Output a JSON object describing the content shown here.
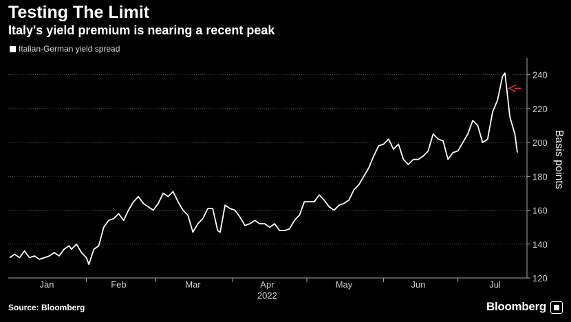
{
  "header": {
    "title": "Testing The Limit",
    "subtitle": "Italy's yield premium is nearing a recent peak"
  },
  "footer": {
    "source": "Source: Bloomberg",
    "brand": "Bloomberg"
  },
  "colors": {
    "background": "#000000",
    "line": "#ffffff",
    "arrow": "#e0314a",
    "grid": "#555555"
  },
  "chart_data": {
    "type": "line",
    "title": "Testing The Limit",
    "subtitle": "Italy's yield premium is nearing a recent peak",
    "xlabel": "2022",
    "ylabel": "Basis points",
    "ylim": [
      120,
      250
    ],
    "yticks": [
      120,
      140,
      160,
      180,
      200,
      220,
      240
    ],
    "y_axis_side": "right",
    "grid": true,
    "legend_placement": "top-left",
    "x_range": [
      "2022-01-01",
      "2022-07-25"
    ],
    "x_month_ticks": [
      {
        "label": "Jan",
        "mid": "2022-01-16"
      },
      {
        "label": "Feb",
        "mid": "2022-02-14"
      },
      {
        "label": "Mar",
        "mid": "2022-03-16"
      },
      {
        "label": "Apr",
        "mid": "2022-04-15"
      },
      {
        "label": "May",
        "mid": "2022-05-16"
      },
      {
        "label": "Jun",
        "mid": "2022-06-15"
      },
      {
        "label": "Jul",
        "mid": "2022-07-16"
      }
    ],
    "x_boundaries": [
      "2022-02-01",
      "2022-03-01",
      "2022-04-01",
      "2022-05-01",
      "2022-06-01",
      "2022-07-01"
    ],
    "series": [
      {
        "name": "Italian-German yield spread",
        "points": [
          [
            "2022-01-01",
            132
          ],
          [
            "2022-01-03",
            134
          ],
          [
            "2022-01-05",
            132
          ],
          [
            "2022-01-07",
            136
          ],
          [
            "2022-01-09",
            132
          ],
          [
            "2022-01-11",
            133
          ],
          [
            "2022-01-13",
            131
          ],
          [
            "2022-01-15",
            132
          ],
          [
            "2022-01-17",
            133
          ],
          [
            "2022-01-19",
            135
          ],
          [
            "2022-01-21",
            133
          ],
          [
            "2022-01-23",
            137
          ],
          [
            "2022-01-25",
            139
          ],
          [
            "2022-01-26",
            137
          ],
          [
            "2022-01-28",
            140
          ],
          [
            "2022-01-30",
            135
          ],
          [
            "2022-02-01",
            132
          ],
          [
            "2022-02-02",
            128
          ],
          [
            "2022-02-04",
            137
          ],
          [
            "2022-02-06",
            139
          ],
          [
            "2022-02-08",
            150
          ],
          [
            "2022-02-10",
            154
          ],
          [
            "2022-02-12",
            155
          ],
          [
            "2022-02-14",
            158
          ],
          [
            "2022-02-16",
            154
          ],
          [
            "2022-02-18",
            160
          ],
          [
            "2022-02-20",
            165
          ],
          [
            "2022-02-22",
            168
          ],
          [
            "2022-02-24",
            164
          ],
          [
            "2022-02-26",
            162
          ],
          [
            "2022-02-28",
            160
          ],
          [
            "2022-03-02",
            164
          ],
          [
            "2022-03-04",
            170
          ],
          [
            "2022-03-06",
            168
          ],
          [
            "2022-03-08",
            171
          ],
          [
            "2022-03-10",
            165
          ],
          [
            "2022-03-12",
            160
          ],
          [
            "2022-03-14",
            157
          ],
          [
            "2022-03-16",
            147
          ],
          [
            "2022-03-18",
            152
          ],
          [
            "2022-03-20",
            155
          ],
          [
            "2022-03-22",
            161
          ],
          [
            "2022-03-24",
            161
          ],
          [
            "2022-03-26",
            148
          ],
          [
            "2022-03-27",
            147
          ],
          [
            "2022-03-29",
            163
          ],
          [
            "2022-03-31",
            161
          ],
          [
            "2022-04-02",
            160
          ],
          [
            "2022-04-04",
            156
          ],
          [
            "2022-04-06",
            151
          ],
          [
            "2022-04-08",
            152
          ],
          [
            "2022-04-10",
            154
          ],
          [
            "2022-04-12",
            152
          ],
          [
            "2022-04-14",
            152
          ],
          [
            "2022-04-16",
            150
          ],
          [
            "2022-04-18",
            152
          ],
          [
            "2022-04-20",
            148
          ],
          [
            "2022-04-22",
            148
          ],
          [
            "2022-04-24",
            149
          ],
          [
            "2022-04-26",
            154
          ],
          [
            "2022-04-28",
            157
          ],
          [
            "2022-04-30",
            165
          ],
          [
            "2022-05-02",
            165
          ],
          [
            "2022-05-04",
            165
          ],
          [
            "2022-05-06",
            169
          ],
          [
            "2022-05-08",
            166
          ],
          [
            "2022-05-10",
            162
          ],
          [
            "2022-05-12",
            160
          ],
          [
            "2022-05-14",
            163
          ],
          [
            "2022-05-16",
            164
          ],
          [
            "2022-05-18",
            166
          ],
          [
            "2022-05-20",
            172
          ],
          [
            "2022-05-22",
            175
          ],
          [
            "2022-05-24",
            180
          ],
          [
            "2022-05-26",
            185
          ],
          [
            "2022-05-28",
            192
          ],
          [
            "2022-05-30",
            198
          ],
          [
            "2022-06-01",
            199
          ],
          [
            "2022-06-03",
            202
          ],
          [
            "2022-06-05",
            196
          ],
          [
            "2022-06-07",
            199
          ],
          [
            "2022-06-09",
            190
          ],
          [
            "2022-06-11",
            187
          ],
          [
            "2022-06-13",
            190
          ],
          [
            "2022-06-15",
            190
          ],
          [
            "2022-06-17",
            192
          ],
          [
            "2022-06-19",
            195
          ],
          [
            "2022-06-21",
            205
          ],
          [
            "2022-06-23",
            202
          ],
          [
            "2022-06-25",
            201
          ],
          [
            "2022-06-27",
            190
          ],
          [
            "2022-06-29",
            194
          ],
          [
            "2022-07-01",
            195
          ],
          [
            "2022-07-03",
            200
          ],
          [
            "2022-07-05",
            205
          ],
          [
            "2022-07-07",
            213
          ],
          [
            "2022-07-09",
            210
          ],
          [
            "2022-07-11",
            200
          ],
          [
            "2022-07-13",
            202
          ],
          [
            "2022-07-15",
            218
          ],
          [
            "2022-07-17",
            225
          ],
          [
            "2022-07-19",
            239
          ],
          [
            "2022-07-20",
            241
          ],
          [
            "2022-07-22",
            215
          ],
          [
            "2022-07-24",
            205
          ],
          [
            "2022-07-25",
            194
          ]
        ]
      }
    ]
  }
}
